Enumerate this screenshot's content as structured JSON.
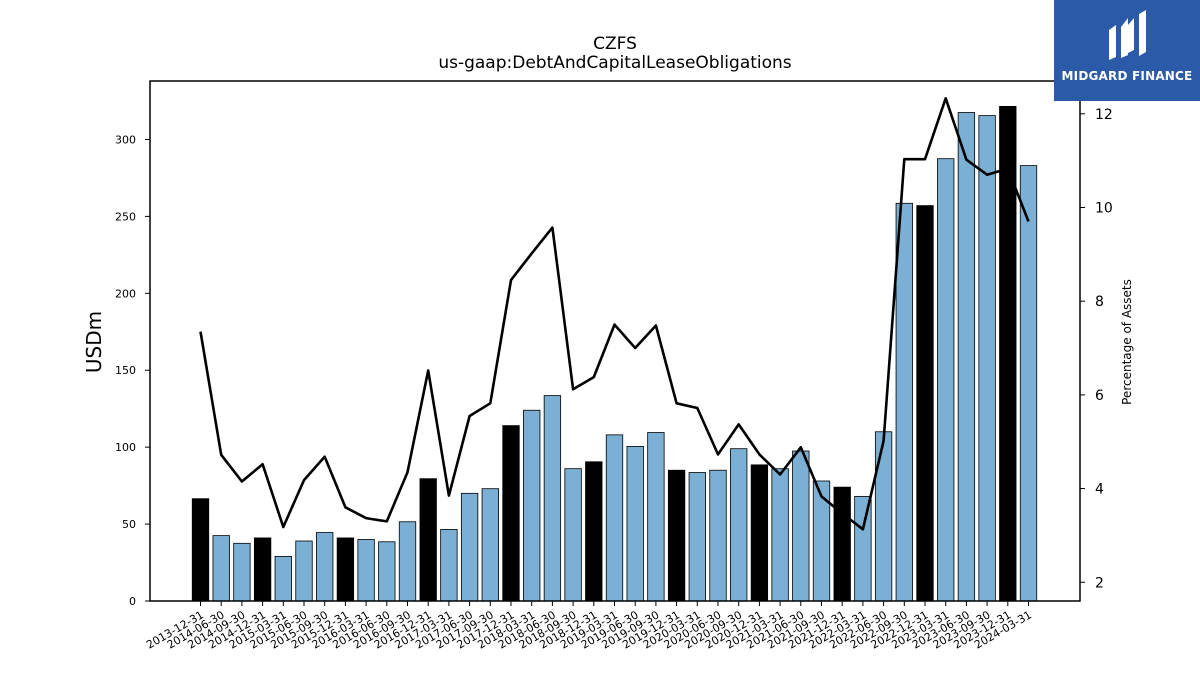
{
  "logo": {
    "text": "MIDGARD FINANCE",
    "mark": "midgard-m-logo"
  },
  "chart_data": {
    "type": "bar",
    "title": "CZFS",
    "subtitle": "us-gaap:DebtAndCapitalLeaseObligations",
    "ylabel": "USDm",
    "y2label": "Percentage of Assets",
    "ylim": [
      0,
      338
    ],
    "y2lim": [
      1.6,
      12.7
    ],
    "yticks": [
      0,
      50,
      100,
      150,
      200,
      250,
      300
    ],
    "y2ticks": [
      2,
      4,
      6,
      8,
      10,
      12
    ],
    "categories": [
      "2013-12-31",
      "2014-06-30",
      "2014-09-30",
      "2014-12-31",
      "2015-03-31",
      "2015-06-30",
      "2015-09-30",
      "2015-12-31",
      "2016-03-31",
      "2016-06-30",
      "2016-09-30",
      "2016-12-31",
      "2017-03-31",
      "2017-06-30",
      "2017-09-30",
      "2017-12-31",
      "2018-03-31",
      "2018-06-30",
      "2018-09-30",
      "2018-12-31",
      "2019-03-31",
      "2019-06-30",
      "2019-09-30",
      "2019-12-31",
      "2020-03-31",
      "2020-06-30",
      "2020-09-30",
      "2020-12-31",
      "2021-03-31",
      "2021-06-30",
      "2021-09-30",
      "2021-12-31",
      "2022-03-31",
      "2022-06-30",
      "2022-09-30",
      "2022-12-31",
      "2023-03-31",
      "2023-06-30",
      "2023-09-30",
      "2023-12-31",
      "2024-03-31"
    ],
    "series": [
      {
        "type": "bar",
        "color": "#7bafd4",
        "highlight_color": "#000000",
        "values": [
          66.5,
          42.5,
          37.5,
          41,
          29,
          39,
          44.5,
          41,
          40,
          38.5,
          51.5,
          79.5,
          46.5,
          70,
          73,
          114,
          124,
          133.5,
          86,
          90.5,
          108,
          100.5,
          109.5,
          85,
          83.5,
          85,
          99,
          88.5,
          86,
          97.5,
          78,
          74,
          68,
          110,
          258.5,
          257,
          287.5,
          317.5,
          315.5,
          321.5,
          283
        ],
        "highlight": [
          true,
          false,
          false,
          true,
          false,
          false,
          false,
          true,
          false,
          false,
          false,
          true,
          false,
          false,
          false,
          true,
          false,
          false,
          false,
          true,
          false,
          false,
          false,
          true,
          false,
          false,
          false,
          true,
          false,
          false,
          false,
          true,
          false,
          false,
          false,
          true,
          false,
          false,
          false,
          true,
          false
        ]
      },
      {
        "type": "line",
        "axis": "right",
        "color": "#000000",
        "values": [
          7.35,
          4.72,
          4.15,
          4.52,
          3.18,
          4.18,
          4.68,
          3.6,
          3.37,
          3.3,
          4.35,
          6.52,
          3.85,
          5.55,
          5.82,
          8.45,
          9.02,
          9.57,
          6.12,
          6.38,
          7.5,
          7.0,
          7.48,
          5.82,
          5.72,
          4.73,
          5.37,
          4.73,
          4.3,
          4.88,
          3.83,
          3.47,
          3.13,
          5.02,
          11.03,
          11.03,
          12.33,
          11.02,
          10.7,
          10.83,
          9.7
        ]
      }
    ],
    "grid": false
  }
}
